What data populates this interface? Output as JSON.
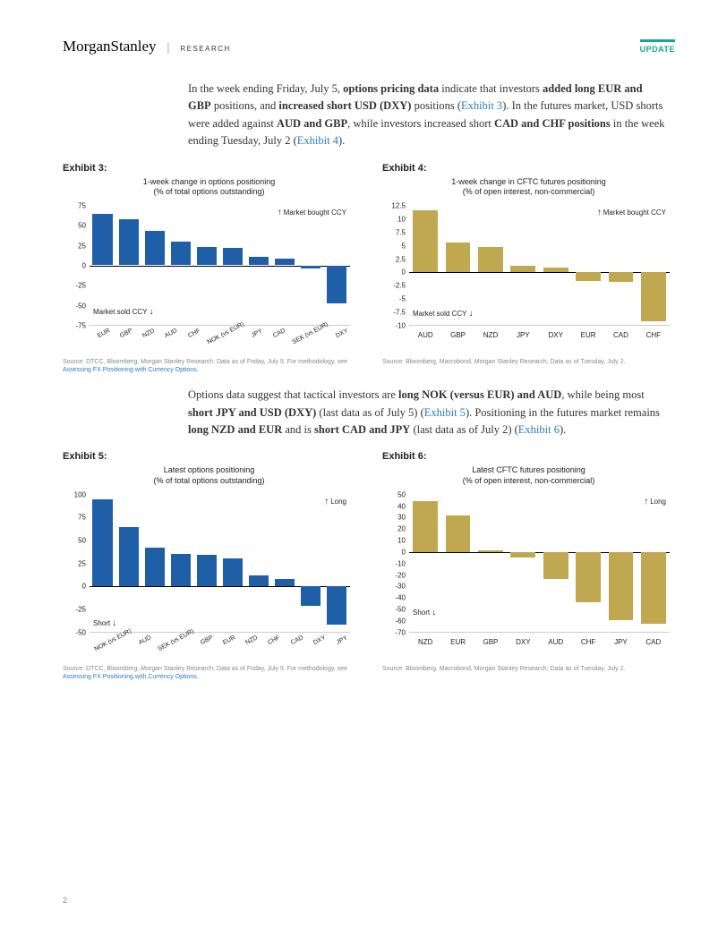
{
  "header": {
    "logo_a": "Morgan",
    "logo_b": "Stanley",
    "research": "RESEARCH",
    "update": "UPDATE"
  },
  "para1": {
    "t1": "In the week ending Friday, July 5, ",
    "b1": "options pricing data",
    "t2": " indicate that investors ",
    "b2": "added long EUR and GBP",
    "t3": " positions, and ",
    "b3": "increased short USD (DXY)",
    "t4": " positions (",
    "link1": "Exhibit 3",
    "t5": "). In the futures market, USD shorts were added against ",
    "b4": "AUD and GBP",
    "t6": ", while investors increased short ",
    "b5": "CAD and CHF positions",
    "t7": " in the week ending Tuesday, July 2 (",
    "link2": "Exhibit 4",
    "t8": ")."
  },
  "para2": {
    "t1": "Options data suggest that tactical investors are ",
    "b1": "long NOK (versus EUR) and AUD",
    "t2": ", while being most ",
    "b2": "short JPY and USD (DXY)",
    "t3": " (last data as of July 5) (",
    "link1": "Exhibit 5",
    "t4": "). Positioning in the futures market remains ",
    "b3": "long NZD and EUR",
    "t5": " and is ",
    "b4": "short CAD and JPY",
    "t6": " (last data as of July 2) (",
    "link2": "Exhibit 6",
    "t7": ")."
  },
  "exhibit3": {
    "label": "Exhibit 3:",
    "title_l1": "1-week change in options positioning",
    "title_l2": "(% of total options outstanding)",
    "type": "bar",
    "bar_color": "#1f5fa8",
    "ylim": [
      -75,
      75
    ],
    "yticks": [
      -75,
      -50,
      -25,
      0,
      25,
      50,
      75
    ],
    "categories": [
      "EUR",
      "GBP",
      "NZD",
      "AUD",
      "CHF",
      "NOK (vs EUR)",
      "JPY",
      "CAD",
      "SEK (vs EUR)",
      "DXY"
    ],
    "values": [
      65,
      58,
      43,
      30,
      23,
      22,
      11,
      8,
      -4,
      -48
    ],
    "annot_top": "Market bought CCY",
    "annot_bot": "Market sold CCY",
    "xlabel_rotate": true,
    "source": "Source: DTCC, Bloomberg, Morgan Stanley Research; Data as of Friday, July 5. For methodology, see ",
    "source_link": "Assessing FX Positioning with Currency Options."
  },
  "exhibit4": {
    "label": "Exhibit 4:",
    "title_l1": "1-week change in CFTC futures positioning",
    "title_l2": "(% of open interest, non-commercial)",
    "type": "bar",
    "bar_color": "#c0a850",
    "ylim": [
      -10,
      12.5
    ],
    "yticks": [
      -10,
      -7.5,
      -5,
      -2.5,
      0,
      2.5,
      5,
      7.5,
      10,
      12.5
    ],
    "categories": [
      "AUD",
      "GBP",
      "NZD",
      "JPY",
      "DXY",
      "EUR",
      "CAD",
      "CHF"
    ],
    "values": [
      11.6,
      5.6,
      4.8,
      1.2,
      0.9,
      -1.7,
      -1.9,
      -9.3
    ],
    "annot_top": "Market bought CCY",
    "annot_bot": "Market sold CCY",
    "xlabel_rotate": false,
    "source": "Source: Bloomberg, Macrobond, Morgan Stanley Research; Data as of Tuesday, July 2."
  },
  "exhibit5": {
    "label": "Exhibit 5:",
    "title_l1": "Latest options positioning",
    "title_l2": "(% of total options outstanding)",
    "type": "bar",
    "bar_color": "#1f5fa8",
    "ylim": [
      -50,
      100
    ],
    "yticks": [
      -50,
      -25,
      0,
      25,
      50,
      75,
      100
    ],
    "categories": [
      "NOK (vs EUR)",
      "AUD",
      "SEK (vs EUR)",
      "GBP",
      "EUR",
      "NZD",
      "CHF",
      "CAD",
      "DXY",
      "JPY"
    ],
    "values": [
      95,
      65,
      42,
      35,
      34,
      30,
      12,
      8,
      -22,
      -42
    ],
    "annot_top": "Long",
    "annot_bot": "Short",
    "xlabel_rotate": true,
    "source": "Source: DTCC, Bloomberg, Morgan Stanley Research; Data as of Friday, July 5. For methodology, see ",
    "source_link": "Assessing FX Positioning with Currency Options."
  },
  "exhibit6": {
    "label": "Exhibit 6:",
    "title_l1": "Latest CFTC futures positioning",
    "title_l2": "(% of open interest, non-commercial)",
    "type": "bar",
    "bar_color": "#c0a850",
    "ylim": [
      -70,
      50
    ],
    "yticks": [
      -70,
      -60,
      -50,
      -40,
      -30,
      -20,
      -10,
      0,
      10,
      20,
      30,
      40,
      50
    ],
    "categories": [
      "NZD",
      "EUR",
      "GBP",
      "DXY",
      "AUD",
      "CHF",
      "JPY",
      "CAD"
    ],
    "values": [
      44,
      32,
      1,
      -5,
      -24,
      -44,
      -60,
      -63
    ],
    "annot_top": "Long",
    "annot_bot": "Short",
    "xlabel_rotate": false,
    "source": "Source: Bloomberg, Macrobond, Morgan Stanley Research; Data as of Tuesday, July 2."
  },
  "page_number": "2"
}
